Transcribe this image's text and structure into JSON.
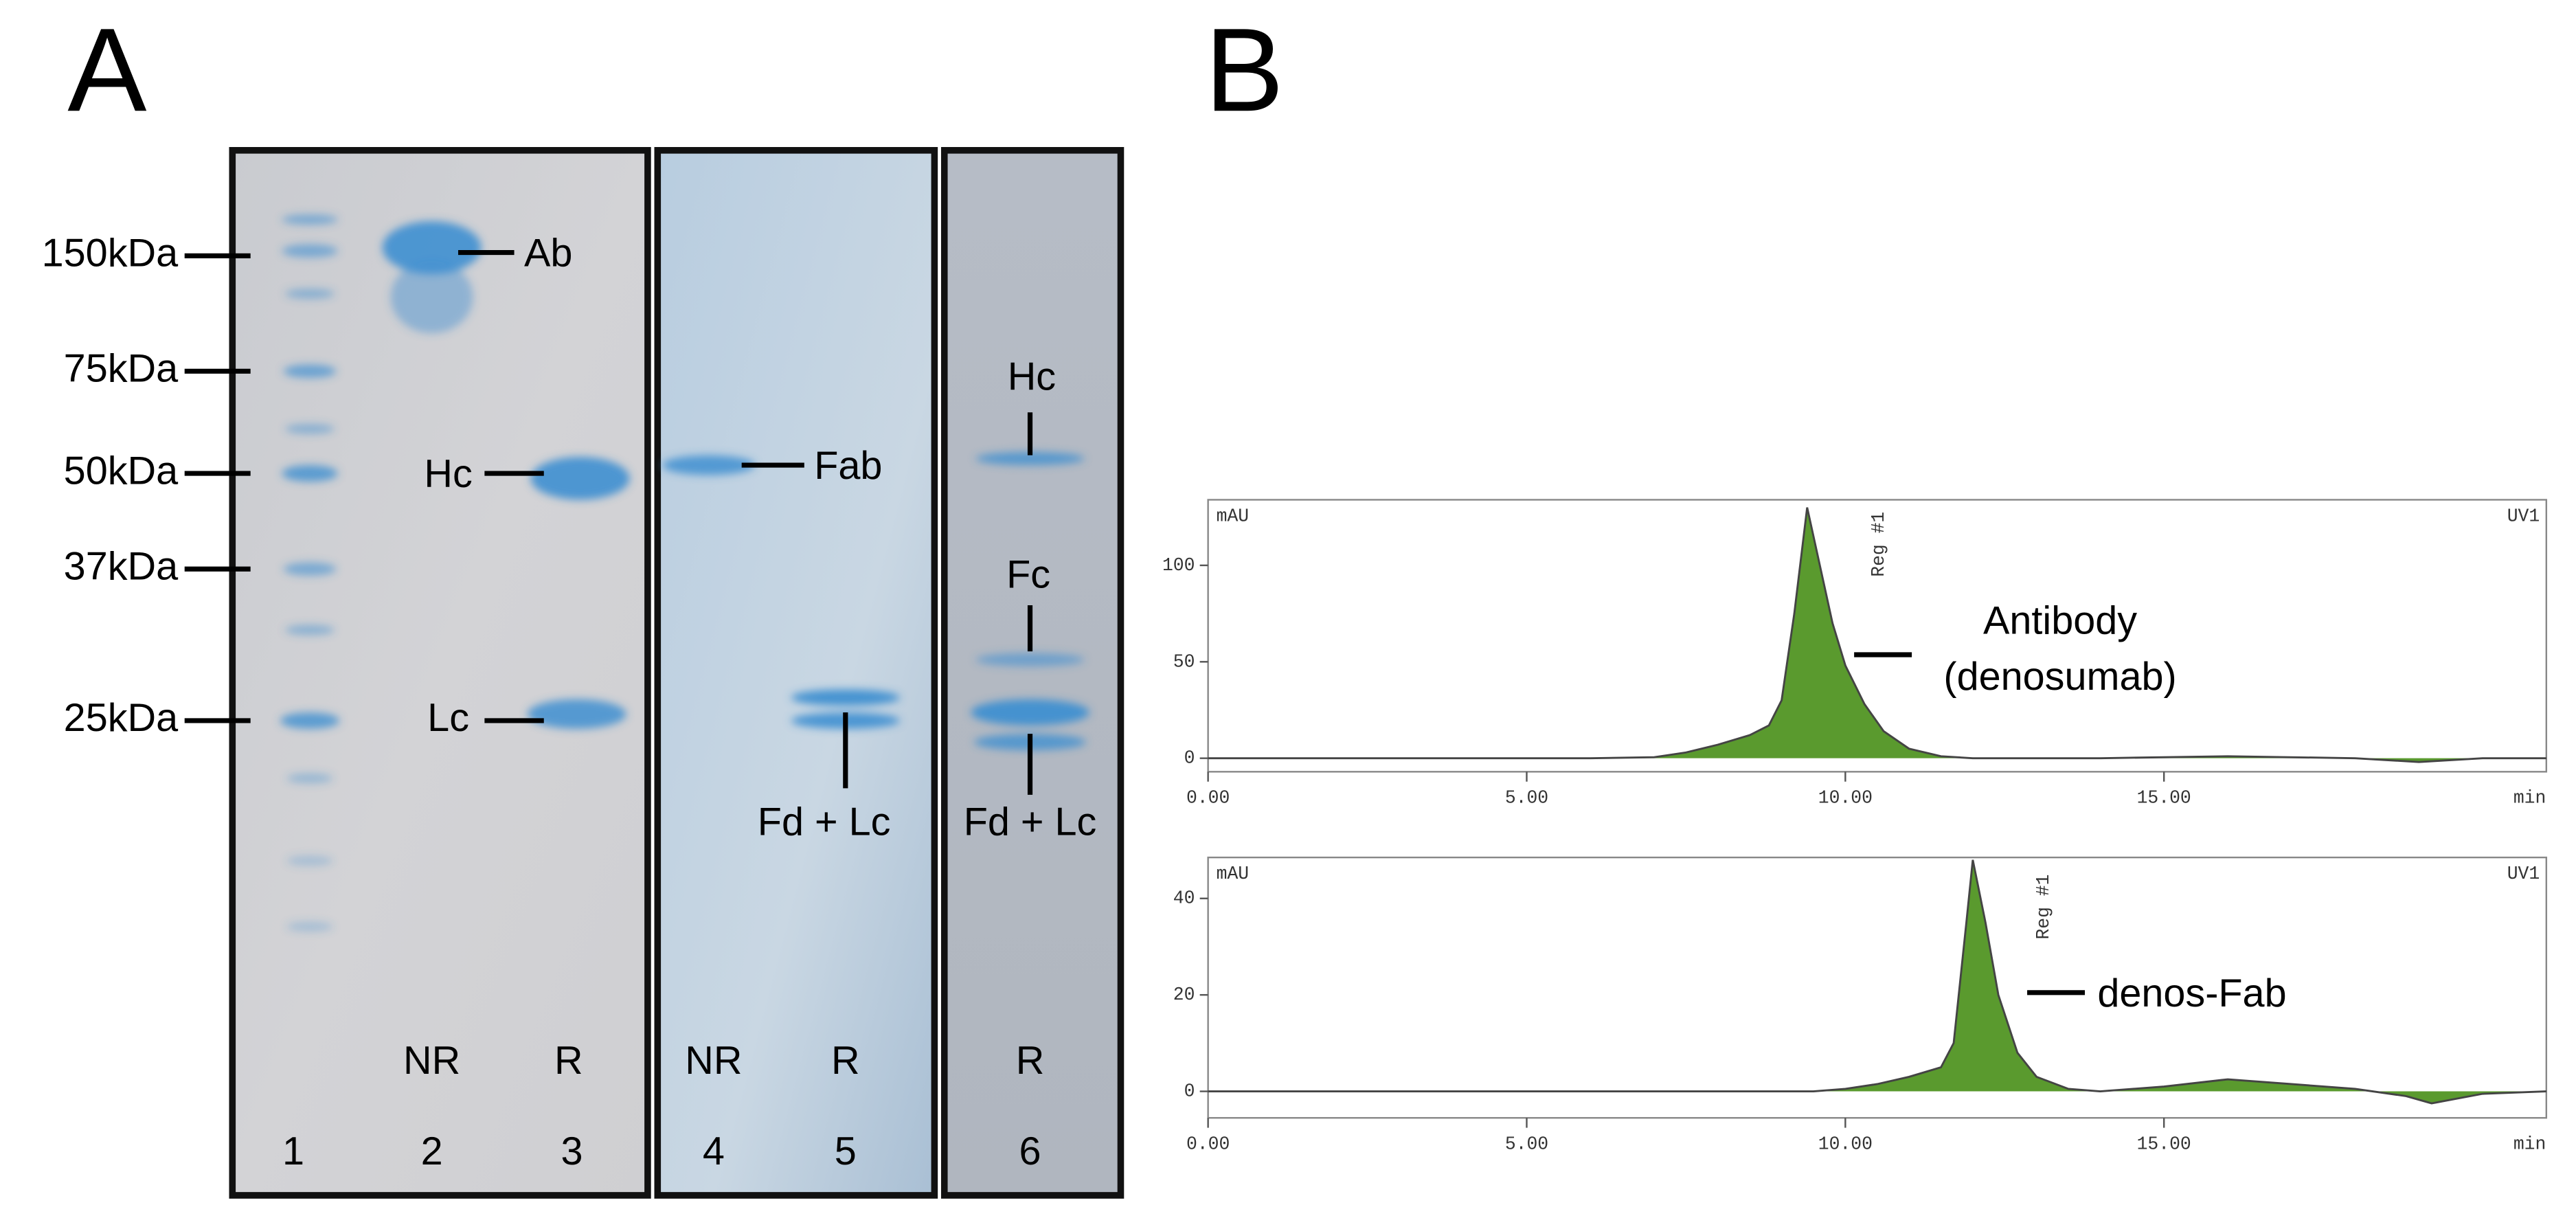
{
  "panels": [
    "A",
    "B"
  ],
  "gel": {
    "markers": [
      "150kDa",
      "75kDa",
      "50kDa",
      "37kDa",
      "25kDa"
    ],
    "band_labels": [
      "Ab",
      "Hc",
      "Lc",
      "Fab",
      "Fd + Lc",
      "Hc",
      "Fc",
      "Fd + Lc"
    ],
    "conditions": [
      "NR",
      "R",
      "NR",
      "R",
      "R"
    ],
    "lanes": [
      "1",
      "2",
      "3",
      "4",
      "5",
      "6"
    ]
  },
  "chart_data": [
    {
      "type": "area",
      "y_label": "mAU",
      "detector": "UV1",
      "x_label": "min",
      "peak_label": "Reg #1",
      "annotation": [
        "Antibody",
        "(denosumab)"
      ],
      "color": "#5a9a2e",
      "line_color": "#444444",
      "x": [
        0,
        2,
        4,
        6,
        7,
        7.5,
        8,
        8.5,
        8.8,
        9.0,
        9.2,
        9.4,
        9.6,
        9.8,
        10,
        10.3,
        10.6,
        11,
        11.5,
        12,
        14,
        16,
        18,
        19,
        20,
        21
      ],
      "values": [
        0,
        0,
        0,
        0,
        0.5,
        3,
        7,
        12,
        17,
        30,
        75,
        130,
        100,
        70,
        48,
        28,
        14,
        5,
        1,
        0,
        0,
        1,
        0,
        -2,
        0,
        0
      ],
      "xlim": [
        0,
        21
      ],
      "ylim": [
        -7,
        134
      ],
      "xticks": [
        {
          "value": 0,
          "label": "0.00"
        },
        {
          "value": 5,
          "label": "5.00"
        },
        {
          "value": 10,
          "label": "10.00"
        },
        {
          "value": 15,
          "label": "15.00"
        }
      ],
      "yticks": [
        0,
        50,
        100
      ]
    },
    {
      "type": "area",
      "y_label": "mAU",
      "detector": "UV1",
      "x_label": "min",
      "peak_label": "Reg #1",
      "annotation": [
        "denos-Fab"
      ],
      "color": "#5a9a2e",
      "line_color": "#444444",
      "x": [
        0,
        5,
        9,
        9.5,
        10,
        10.5,
        11,
        11.5,
        11.7,
        11.9,
        12.0,
        12.2,
        12.4,
        12.7,
        13,
        13.5,
        14,
        15,
        16,
        17,
        18,
        18.8,
        19.2,
        20,
        21
      ],
      "values": [
        0,
        0,
        0,
        0,
        0.5,
        1.5,
        3,
        5,
        10,
        35,
        48,
        35,
        20,
        8,
        3,
        0.5,
        0,
        1,
        2.5,
        1.5,
        0.5,
        -1,
        -2.5,
        -0.5,
        0
      ],
      "xlim": [
        0,
        21
      ],
      "ylim": [
        -5.5,
        48.5
      ],
      "xticks": [
        {
          "value": 0,
          "label": "0.00"
        },
        {
          "value": 5,
          "label": "5.00"
        },
        {
          "value": 10,
          "label": "10.00"
        },
        {
          "value": 15,
          "label": "15.00"
        }
      ],
      "yticks": [
        0,
        20,
        40
      ]
    }
  ]
}
